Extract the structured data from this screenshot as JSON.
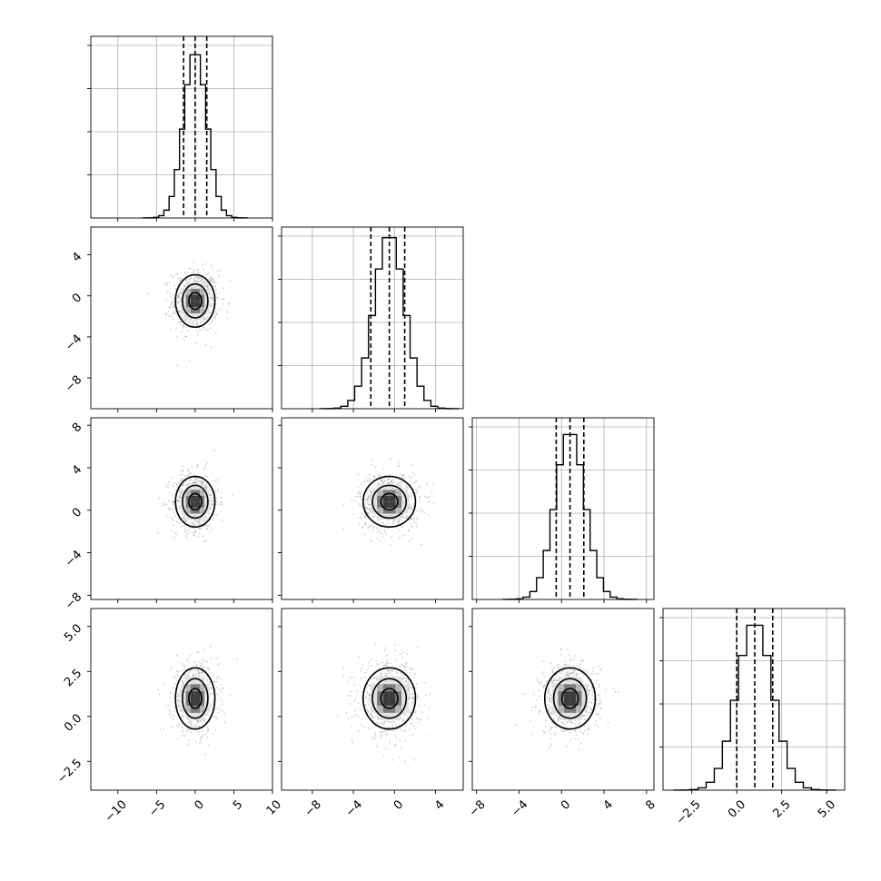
{
  "chart_data": {
    "type": "corner",
    "parameters": [
      {
        "tick_values": [
          -10,
          -5,
          0,
          5,
          10
        ],
        "tick_labels": [
          "−10",
          "−5",
          "0",
          "5",
          "10"
        ],
        "range": [
          -13.5,
          10.0
        ],
        "mean": 0.0,
        "sd": 1.5,
        "quantiles": [
          -1.5,
          0.0,
          1.5
        ],
        "peak": 0.283
      },
      {
        "tick_values": [
          -8,
          -4,
          0,
          4
        ],
        "tick_labels": [
          "−8",
          "−4",
          "0",
          "4"
        ],
        "range": [
          -11.0,
          6.7
        ],
        "mean": -0.5,
        "sd": 1.5,
        "quantiles": [
          -2.3,
          -0.5,
          1.0
        ],
        "peak": 0.27
      },
      {
        "tick_values": [
          -8,
          -4,
          0,
          4,
          8
        ],
        "tick_labels": [
          "−8",
          "−4",
          "0",
          "4",
          "8"
        ],
        "range": [
          -8.4,
          8.7
        ],
        "mean": 0.8,
        "sd": 1.4,
        "quantiles": [
          -0.5,
          0.8,
          2.1
        ],
        "peak": 0.3
      },
      {
        "tick_values": [
          -2.5,
          0.0,
          2.5,
          5.0
        ],
        "tick_labels": [
          "−2.5",
          "0.0",
          "2.5",
          "5.0"
        ],
        "range": [
          -4.1,
          6.0
        ],
        "mean": 1.0,
        "sd": 1.0,
        "quantiles": [
          0.0,
          1.0,
          2.0
        ],
        "peak": 0.42
      }
    ],
    "histogram_bins": 20,
    "histogram_y_ticks": 4,
    "grid": true,
    "quantile_lines": "dashed",
    "contour_levels": 3,
    "scatter_color": "#9a9a9a",
    "density_colors": [
      "#ffffff",
      "#e2e2e2",
      "#b6b6b6",
      "#7c7c7c",
      "#3c3c3c",
      "#000000"
    ]
  }
}
